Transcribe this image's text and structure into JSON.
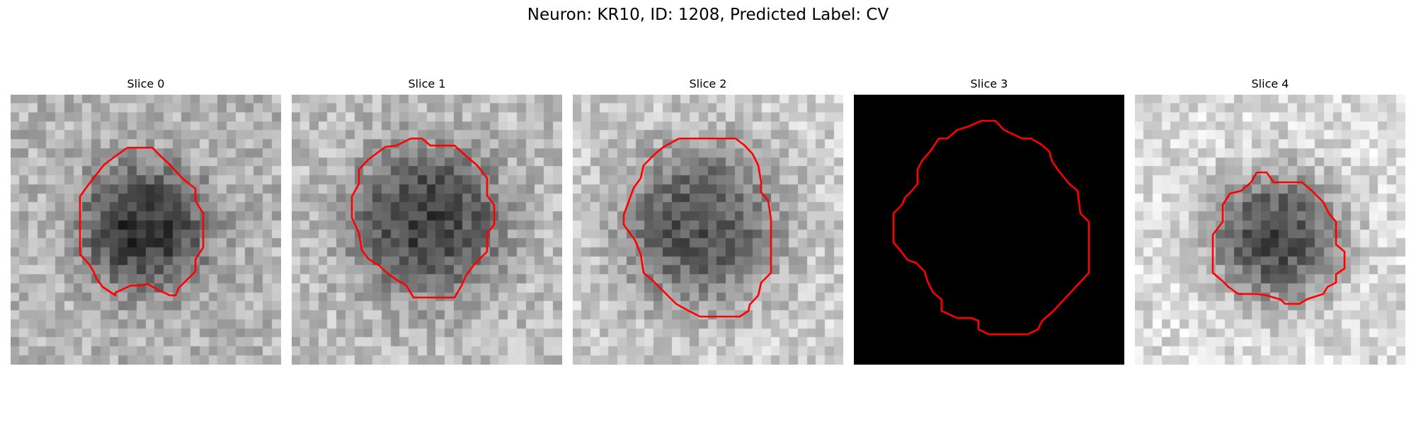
{
  "figure": {
    "title": "Neuron: KR10, ID: 1208, Predicted Label: CV",
    "contour_color": "#ff0000",
    "panels": [
      {
        "title": "Slice 0",
        "image": "noisy grayscale patch with dark blob"
      },
      {
        "title": "Slice 1",
        "image": "noisy grayscale patch with dark blob"
      },
      {
        "title": "Slice 2",
        "image": "noisy grayscale patch with dark blob"
      },
      {
        "title": "Slice 3",
        "image": "all black patch"
      },
      {
        "title": "Slice 4",
        "image": "noisy grayscale patch with dark blob"
      }
    ]
  }
}
